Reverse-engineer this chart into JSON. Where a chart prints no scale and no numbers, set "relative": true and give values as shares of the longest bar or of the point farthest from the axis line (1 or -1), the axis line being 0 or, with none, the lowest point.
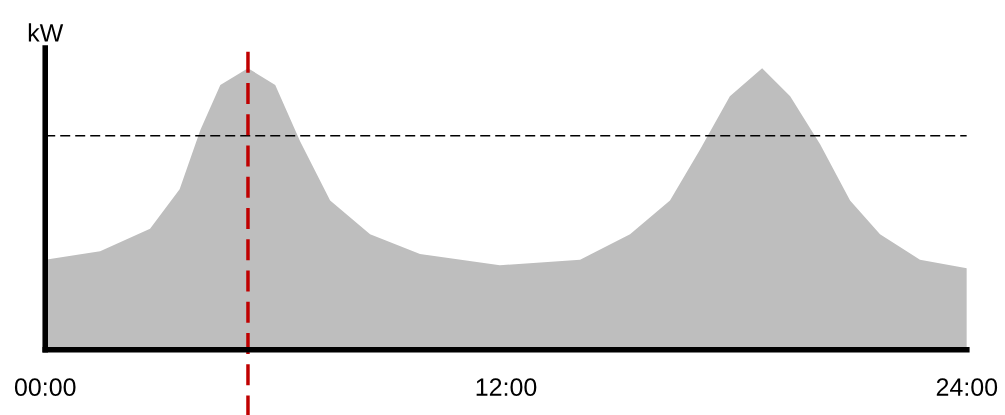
{
  "chart_data": {
    "type": "area",
    "ylabel": "kW",
    "relative": true,
    "x": [
      0,
      1.43,
      2.73,
      3.5,
      4.04,
      4.56,
      5.28,
      5.99,
      6.64,
      7.42,
      8.46,
      9.76,
      11.84,
      13.93,
      15.23,
      16.27,
      17.05,
      17.83,
      18.67,
      19.4,
      20.18,
      20.96,
      21.74,
      22.78,
      24
    ],
    "series": [
      {
        "color": "#bebebe",
        "values": [
          0.32,
          0.35,
          0.43,
          0.57,
          0.78,
          0.94,
          1.0,
          0.94,
          0.74,
          0.53,
          0.41,
          0.34,
          0.3,
          0.32,
          0.41,
          0.53,
          0.71,
          0.9,
          1.0,
          0.9,
          0.73,
          0.53,
          0.41,
          0.32,
          0.29
        ]
      }
    ],
    "xlim": [
      0,
      24
    ],
    "xticks": [
      {
        "value": 0,
        "label": "00:00"
      },
      {
        "value": 12,
        "label": "12:00"
      },
      {
        "value": 24,
        "label": "24:00"
      }
    ],
    "ref_lines": [
      {
        "axis": "y",
        "value": 0.76,
        "color": "#000000",
        "line_style": "dashed"
      },
      {
        "axis": "x",
        "value": 5.28,
        "color": "#c00000",
        "line_style": "dashed"
      }
    ],
    "grid": false,
    "legend": false
  }
}
